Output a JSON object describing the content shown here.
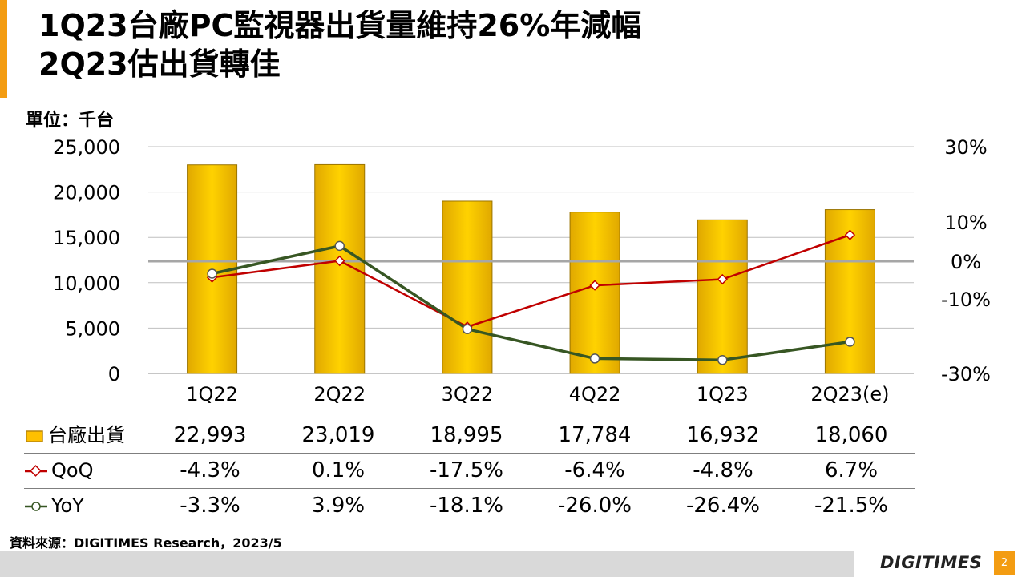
{
  "header": {
    "title_line1": "1Q23台廠PC監視器出貨量維持26%年減幅",
    "title_line2": "2Q23估出貨轉佳"
  },
  "unit_label": "單位：千台",
  "chart_data": {
    "type": "bar",
    "categories": [
      "1Q22",
      "2Q22",
      "3Q22",
      "4Q22",
      "1Q23",
      "2Q23(e)"
    ],
    "series": [
      {
        "name": "台廠出貨",
        "kind": "bar",
        "axis": "left",
        "values": [
          22993,
          23019,
          18995,
          17784,
          16932,
          18060
        ],
        "color": "#ffc000"
      },
      {
        "name": "QoQ",
        "kind": "line",
        "axis": "right",
        "values": [
          -4.3,
          0.1,
          -17.5,
          -6.4,
          -4.8,
          6.7
        ],
        "color": "#c00000"
      },
      {
        "name": "YoY",
        "kind": "line",
        "axis": "right",
        "values": [
          -3.3,
          3.9,
          -18.1,
          -26.0,
          -26.4,
          -21.5
        ],
        "color": "#375623"
      }
    ],
    "y_left": {
      "min": 0,
      "max": 25000,
      "ticks": [
        "0",
        "5,000",
        "10,000",
        "15,000",
        "20,000",
        "25,000"
      ]
    },
    "y_right": {
      "ticks": [
        {
          "label": "30%",
          "value": 30
        },
        {
          "label": "10%",
          "value": 10
        },
        {
          "label": "0%",
          "value": 0
        },
        {
          "label": "-10%",
          "value": -10
        },
        {
          "label": "-30%",
          "value": -30
        }
      ]
    },
    "grid": true
  },
  "data_table": {
    "rows": [
      {
        "label": "台廠出貨",
        "cells": [
          "22,993",
          "23,019",
          "18,995",
          "17,784",
          "16,932",
          "18,060"
        ]
      },
      {
        "label": "QoQ",
        "cells": [
          "-4.3%",
          "0.1%",
          "-17.5%",
          "-6.4%",
          "-4.8%",
          "6.7%"
        ]
      },
      {
        "label": "YoY",
        "cells": [
          "-3.3%",
          "3.9%",
          "-18.1%",
          "-26.0%",
          "-26.4%",
          "-21.5%"
        ]
      }
    ]
  },
  "source": "資料來源：DIGITIMES Research，2023/5",
  "brand": "DIGITIMES",
  "page_number": "2",
  "colors": {
    "accent": "#f39c12",
    "bar": "#ffc000",
    "qoq": "#c00000",
    "yoy": "#375623",
    "zero_line": "#a6a6a6"
  }
}
